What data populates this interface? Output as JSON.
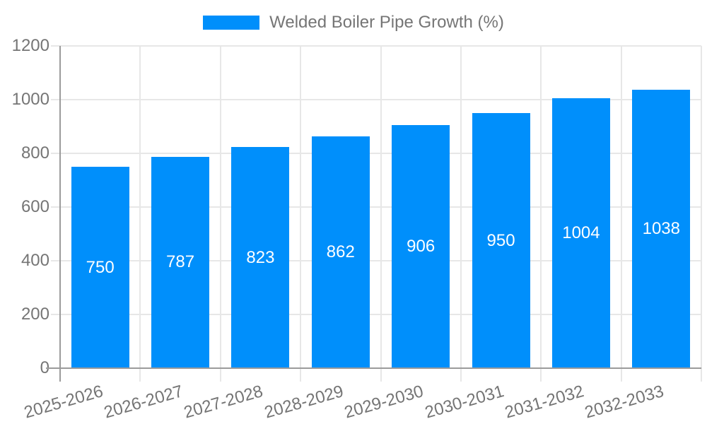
{
  "chart_data": {
    "type": "bar",
    "title": "Welded Boiler Pipe Growth (%)",
    "categories": [
      "2025-2026",
      "2026-2027",
      "2027-2028",
      "2028-2029",
      "2029-2030",
      "2030-2031",
      "2031-2032",
      "2032-2033"
    ],
    "values": [
      750,
      787,
      823,
      862,
      906,
      950,
      1004,
      1038
    ],
    "xlabel": "",
    "ylabel": "",
    "ylim": [
      0,
      1200
    ],
    "yticks": [
      0,
      200,
      400,
      600,
      800,
      1000,
      1200
    ],
    "grid": true,
    "legend_position": "top",
    "value_label_placement": "inside-center",
    "x_label_rotation_deg": -16
  },
  "colors": {
    "bar": "#008FFB",
    "grid": "#E7E7E7",
    "axis": "#9B9B9B",
    "text": "#757575",
    "value_label": "#FFFFFF"
  }
}
